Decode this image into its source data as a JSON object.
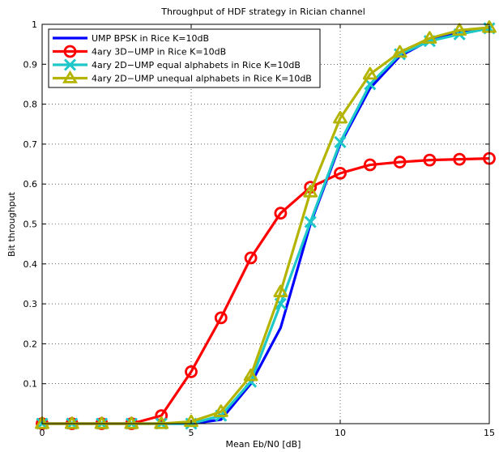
{
  "chart_data": {
    "type": "line",
    "title": "Throughput of HDF strategy in Rician channel",
    "xlabel": "Mean Eb/N0 [dB]",
    "ylabel": "Bit throughput",
    "xlim": [
      0,
      15
    ],
    "ylim": [
      0,
      1
    ],
    "xticks": [
      0,
      5,
      10,
      15
    ],
    "yticks": [
      0.1,
      0.2,
      0.3,
      0.4,
      0.5,
      0.6,
      0.7,
      0.8,
      0.9,
      1
    ],
    "grid": true,
    "legend_position": "top-left",
    "x": [
      0,
      1,
      2,
      3,
      4,
      5,
      6,
      7,
      8,
      9,
      10,
      11,
      12,
      13,
      14,
      15
    ],
    "series": [
      {
        "name": "UMP BPSK in Rice K=10dB",
        "color": "#0000ff",
        "marker": "none",
        "values": [
          0,
          0,
          0,
          0,
          0,
          0,
          0.01,
          0.1,
          0.24,
          0.5,
          0.7,
          0.84,
          0.92,
          0.96,
          0.98,
          0.99
        ]
      },
      {
        "name": "4ary 3D−UMP in Rice K=10dB",
        "color": "#ff0000",
        "marker": "circle",
        "values": [
          0,
          0,
          0,
          0,
          0.02,
          0.13,
          0.265,
          0.415,
          0.527,
          0.592,
          0.627,
          0.648,
          0.655,
          0.66,
          0.662,
          0.664
        ]
      },
      {
        "name": "4ary 2D−UMP equal alphabets in Rice K=10dB",
        "color": "#1ec8c8",
        "marker": "x",
        "values": [
          0,
          0,
          0,
          0,
          0,
          0,
          0.02,
          0.105,
          0.3,
          0.505,
          0.705,
          0.85,
          0.925,
          0.958,
          0.975,
          0.99
        ]
      },
      {
        "name": "4ary 2D−UMP unequal alphabets in Rice K=10dB",
        "color": "#b4b400",
        "marker": "triangle",
        "values": [
          0,
          0,
          0,
          0,
          0,
          0.005,
          0.03,
          0.12,
          0.33,
          0.58,
          0.765,
          0.875,
          0.93,
          0.965,
          0.985,
          0.992
        ]
      }
    ]
  }
}
